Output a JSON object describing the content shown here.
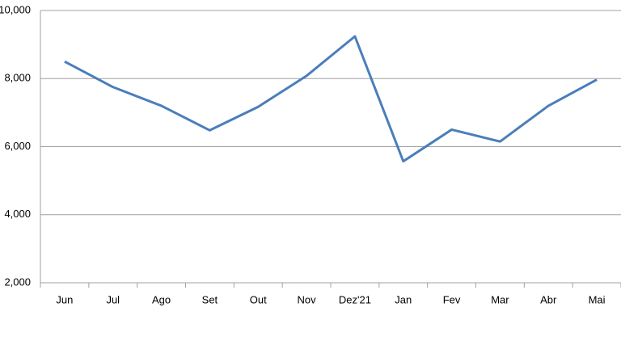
{
  "chart_data": {
    "type": "line",
    "categories": [
      "Jun",
      "Jul",
      "Ago",
      "Set",
      "Out",
      "Nov",
      "Dez'21",
      "Jan",
      "Fev",
      "Mar",
      "Abr",
      "Mai"
    ],
    "series": [
      {
        "color": "#4a7ebb",
        "values": [
          8500,
          7750,
          7200,
          6480,
          7170,
          8080,
          9240,
          5570,
          6500,
          6150,
          7200,
          7970
        ]
      }
    ],
    "ylim": [
      2000,
      10000
    ],
    "yticks": [
      {
        "value": 2000,
        "label": "2,000"
      },
      {
        "value": 4000,
        "label": "4,000"
      },
      {
        "value": 6000,
        "label": "6,000"
      },
      {
        "value": 8000,
        "label": "8,000"
      },
      {
        "value": 10000,
        "label": "10,000"
      }
    ],
    "grid": true
  }
}
